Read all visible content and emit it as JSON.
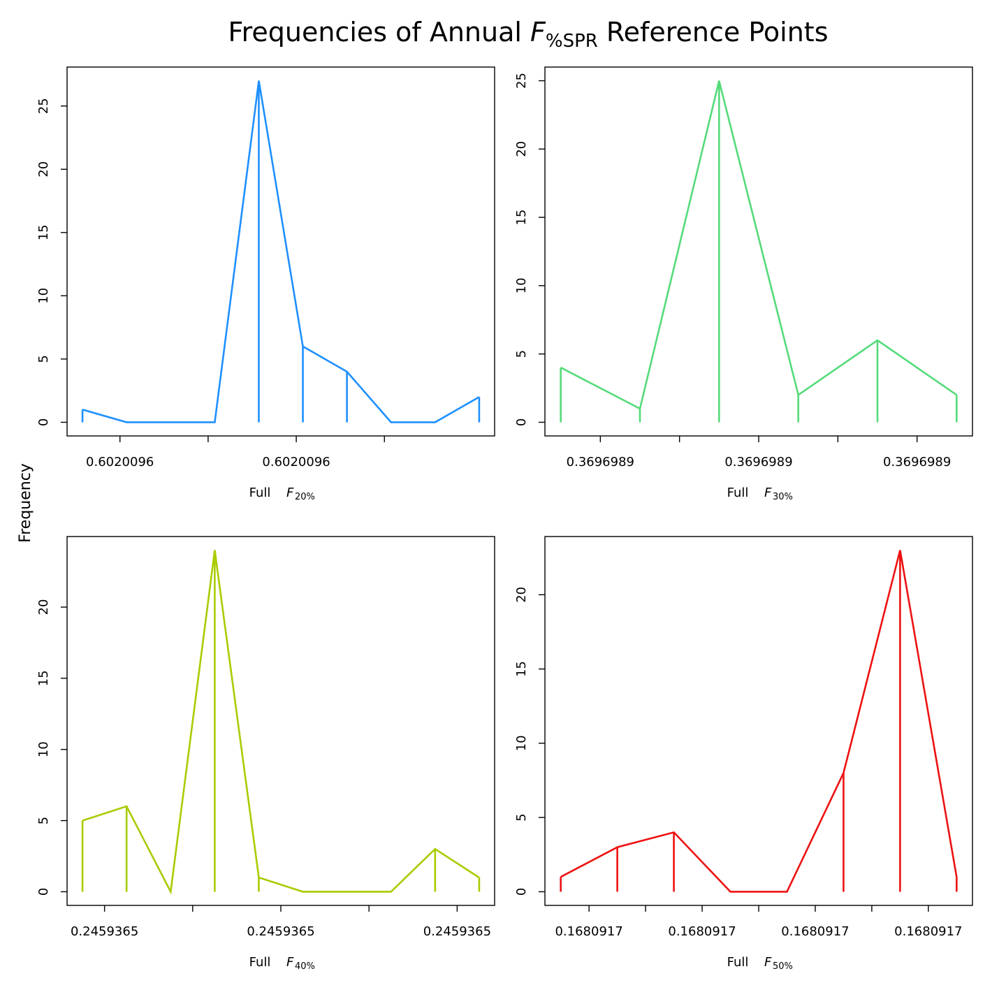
{
  "title": {
    "prefix": "Frequencies of Annual ",
    "symbol": "F",
    "subscript": "%SPR",
    "suffix": " Reference Points"
  },
  "ylabel": "Frequency",
  "chart_data": [
    {
      "type": "line",
      "color": "#1E90FF",
      "xlabel": {
        "prefix": "Full",
        "symbol": "F",
        "subscript": "20%"
      },
      "x": [
        1,
        2,
        3,
        4,
        5,
        6,
        7,
        8,
        9,
        10
      ],
      "values": [
        1,
        0,
        0,
        0,
        27,
        6,
        4,
        0,
        0,
        2
      ],
      "xlim": [
        0.65,
        10.35
      ],
      "ylim": [
        -1.08,
        28.08
      ],
      "yticks": [
        0,
        5,
        10,
        15,
        20,
        25
      ],
      "xticks": [
        1.85,
        3.85,
        5.85,
        7.85
      ],
      "xtick_labels": [
        "0.6020096",
        "",
        "0.6020096",
        ""
      ]
    },
    {
      "type": "line",
      "color": "#54DB7A",
      "xlabel": {
        "prefix": "Full",
        "symbol": "F",
        "subscript": "30%"
      },
      "x": [
        1,
        2,
        3,
        4,
        5,
        6
      ],
      "values": [
        4,
        1,
        25,
        2,
        6,
        2
      ],
      "xlim": [
        0.8,
        6.2
      ],
      "ylim": [
        -1.0,
        26.0
      ],
      "yticks": [
        0,
        5,
        10,
        15,
        20,
        25
      ],
      "xticks": [
        1.5,
        2.5,
        3.5,
        4.5,
        5.5
      ],
      "xtick_labels": [
        "0.3696989",
        "",
        "0.3696989",
        "",
        "0.3696989"
      ]
    },
    {
      "type": "line",
      "color": "#A8CC00",
      "xlabel": {
        "prefix": "Full",
        "symbol": "F",
        "subscript": "40%"
      },
      "x": [
        1,
        2,
        3,
        4,
        5,
        6,
        7,
        8,
        9,
        10
      ],
      "values": [
        5,
        6,
        0,
        24,
        1,
        0,
        0,
        0,
        3,
        1
      ],
      "xlim": [
        0.65,
        10.35
      ],
      "ylim": [
        -0.96,
        24.96
      ],
      "yticks": [
        0,
        5,
        10,
        15,
        20
      ],
      "xticks": [
        1.5,
        3.5,
        5.5,
        7.5,
        9.5
      ],
      "xtick_labels": [
        "0.2459365",
        "",
        "0.2459365",
        "",
        "0.2459365"
      ]
    },
    {
      "type": "line",
      "color": "#EE1111",
      "xlabel": {
        "prefix": "Full",
        "symbol": "F",
        "subscript": "50%"
      },
      "x": [
        1,
        2,
        3,
        4,
        5,
        6,
        7,
        8
      ],
      "values": [
        1,
        3,
        4,
        0,
        0,
        8,
        23,
        1
      ],
      "xlim": [
        0.72,
        8.28
      ],
      "ylim": [
        -0.92,
        23.92
      ],
      "yticks": [
        0,
        5,
        10,
        15,
        20
      ],
      "xticks": [
        1.5,
        2.5,
        3.5,
        4.5,
        5.5,
        6.5,
        7.5
      ],
      "xtick_labels": [
        "0.1680917",
        "",
        "0.1680917",
        "",
        "0.1680917",
        "",
        "0.1680917"
      ]
    }
  ]
}
